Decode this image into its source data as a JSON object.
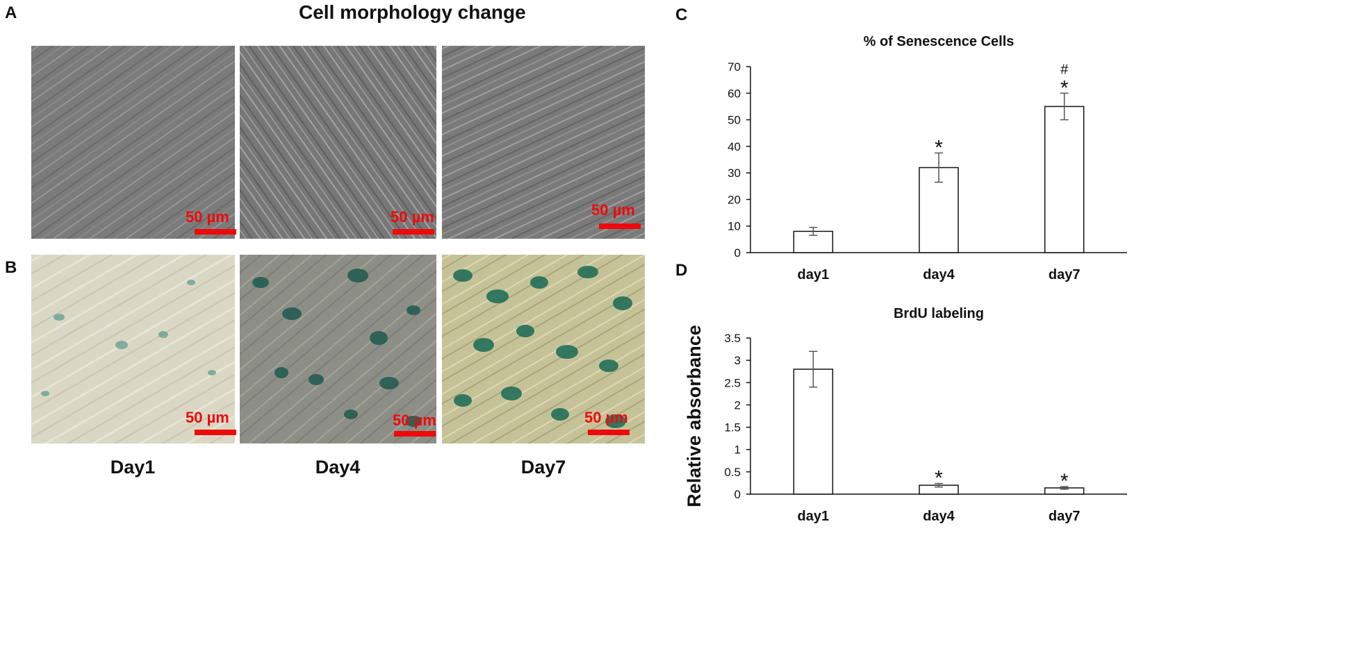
{
  "panels": {
    "a": "A",
    "b": "B",
    "c": "C",
    "d": "D"
  },
  "figure_title": "Cell morphology change",
  "micrographs": {
    "scale_label": "50 µm",
    "day_labels": [
      "Day1",
      "Day4",
      "Day7"
    ]
  },
  "colors": {
    "scalebar": "#ee0a0a",
    "phase_contrast": "#7d7d7d",
    "sa_bgal_bg_day1": "#d9d6c4",
    "sa_bgal_bg_day4": "#8c8e86",
    "sa_bgal_bg_day7": "#c8c49a",
    "stain": "#1e6a5a"
  },
  "chart_data": [
    {
      "type": "bar",
      "title": "% of Senescence Cells",
      "xlabel": "",
      "ylabel": "",
      "categories": [
        "day1",
        "day4",
        "day7"
      ],
      "values": [
        8,
        32,
        55
      ],
      "errors": [
        1.5,
        5.5,
        5
      ],
      "annotations": [
        "",
        "*",
        "#\n*"
      ],
      "ylim": [
        0,
        70
      ],
      "yticks": [
        0,
        10,
        20,
        30,
        40,
        50,
        60,
        70
      ],
      "grid": false
    },
    {
      "type": "bar",
      "title": "BrdU labeling",
      "xlabel": "",
      "ylabel": "Relative absorbance",
      "categories": [
        "day1",
        "day4",
        "day7"
      ],
      "values": [
        2.8,
        0.2,
        0.14
      ],
      "errors": [
        0.4,
        0.04,
        0.03
      ],
      "annotations": [
        "",
        "*",
        "*"
      ],
      "ylim": [
        0,
        3.5
      ],
      "yticks": [
        0,
        0.5,
        1,
        1.5,
        2,
        2.5,
        3,
        3.5
      ],
      "grid": false
    }
  ]
}
